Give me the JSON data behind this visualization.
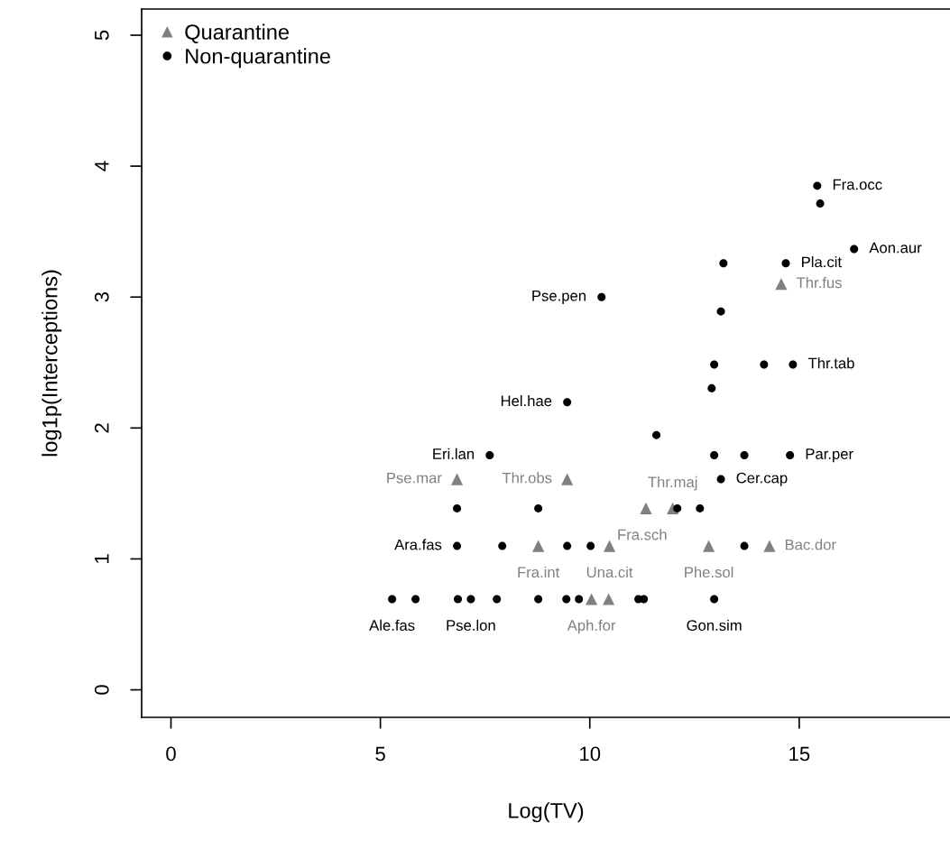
{
  "chart_data": {
    "type": "scatter",
    "xlabel": "Log(TV)",
    "ylabel": "log1p(Interceptions)",
    "xlim": [
      -0.7,
      18.6
    ],
    "ylim": [
      -0.21,
      5.2
    ],
    "xticks": [
      0,
      5,
      10,
      15
    ],
    "yticks": [
      0,
      1,
      2,
      3,
      4,
      5
    ],
    "legend": "top left",
    "series": [
      {
        "name": "Quarantine",
        "color": "#808080",
        "marker": "triangle",
        "x": [
          10.04,
          10.45,
          8.77,
          10.47,
          12.84,
          14.29,
          11.34,
          11.98,
          6.83,
          9.46,
          14.57
        ],
        "values": [
          0.693,
          0.693,
          1.099,
          1.099,
          1.099,
          1.099,
          1.386,
          1.386,
          1.609,
          1.609,
          3.1
        ],
        "value_labels": [
          "Aph.for",
          null,
          "Fra.int",
          "Una.cit",
          "Phe.sol",
          "Bac.dor",
          "Fra.sch",
          "Thr.maj",
          "Pse.mar",
          "Thr.obs",
          "Thr.fus"
        ]
      },
      {
        "name": "Non-quarantine",
        "color": "#000000",
        "marker": "circle",
        "x": [
          5.28,
          5.84,
          6.85,
          7.16,
          7.78,
          8.77,
          9.44,
          9.74,
          11.16,
          11.29,
          12.97,
          6.83,
          7.91,
          9.46,
          10.02,
          13.69,
          6.83,
          8.77,
          12.09,
          12.63,
          13.13,
          7.61,
          12.97,
          13.69,
          14.78,
          11.59,
          9.46,
          12.91,
          12.97,
          14.16,
          14.85,
          13.13,
          10.28,
          13.19,
          14.68,
          16.31,
          15.5,
          15.43
        ],
        "values": [
          0.693,
          0.693,
          0.693,
          0.693,
          0.693,
          0.693,
          0.693,
          0.693,
          0.693,
          0.693,
          0.693,
          1.099,
          1.099,
          1.099,
          1.099,
          1.099,
          1.386,
          1.386,
          1.386,
          1.386,
          1.609,
          1.792,
          1.792,
          1.792,
          1.792,
          1.946,
          2.197,
          2.303,
          2.485,
          2.485,
          2.485,
          2.89,
          3.0,
          3.258,
          3.258,
          3.367,
          3.714,
          3.85
        ],
        "value_labels": [
          "Ale.fas",
          null,
          null,
          "Pse.lon",
          null,
          null,
          null,
          null,
          null,
          null,
          "Gon.sim",
          "Ara.fas",
          null,
          null,
          null,
          null,
          null,
          null,
          null,
          null,
          "Cer.cap",
          "Eri.lan",
          null,
          null,
          "Par.per",
          null,
          "Hel.hae",
          null,
          null,
          null,
          "Thr.tab",
          null,
          "Pse.pen",
          null,
          "Pla.cit",
          "Aon.aur",
          null,
          "Fra.occ"
        ]
      }
    ]
  }
}
